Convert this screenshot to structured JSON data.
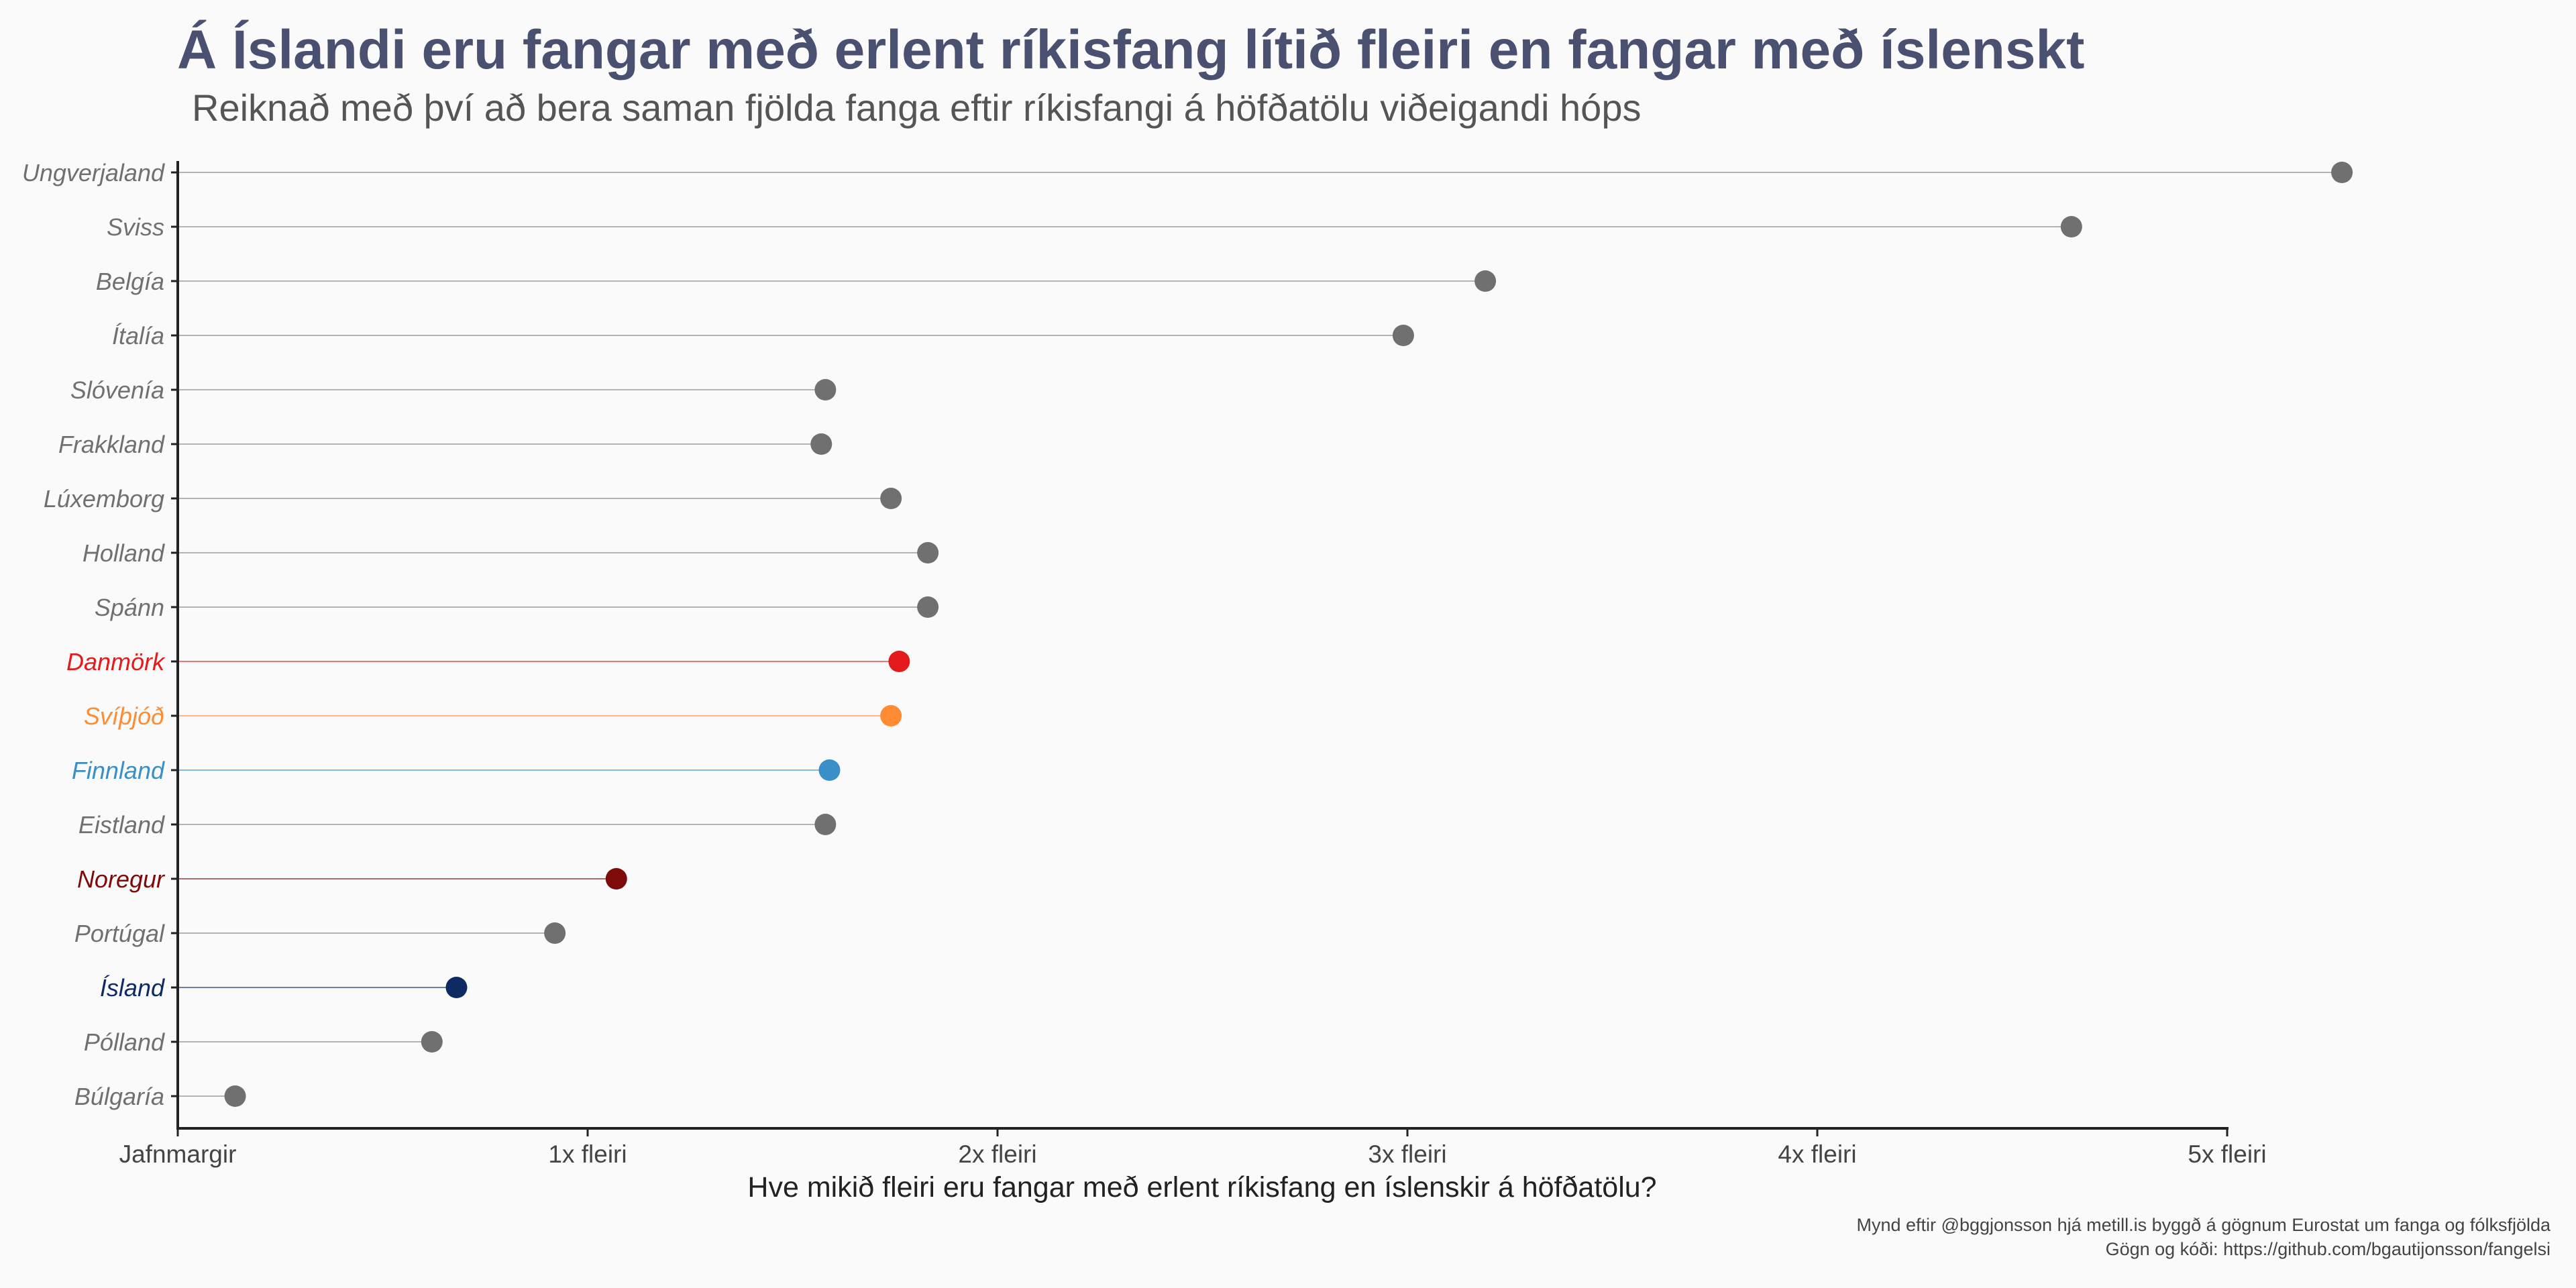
{
  "title": "Á Íslandi eru fangar með erlent ríkisfang lítið fleiri en fangar með íslenskt",
  "subtitle": "Reiknað með því að bera saman fjölda fanga eftir ríkisfangi á höfðatölu viðeigandi hóps",
  "caption_line1": "Mynd eftir @bggjonsson hjá metill.is byggð á gögnum Eurostat um fanga og fólksfjölda",
  "caption_line2": "Gögn og kóði: https://github.com/bgautijonsson/fangelsi",
  "colors": {
    "default": "#707070",
    "Danmörk": "#e41a1c",
    "Svíþjóð": "#ff8c33",
    "Finnland": "#3a8fc7",
    "Noregur": "#7f0a0a",
    "Ísland": "#0d2a63",
    "axis": "#222222",
    "background": "#fafafa"
  },
  "chart_data": {
    "type": "lollipop",
    "xlabel": "Hve mikið fleiri eru fangar með erlent ríkisfang en íslenskir á höfðatölu?",
    "ylabel": "",
    "xlim": [
      1,
      6
    ],
    "xticks": [
      {
        "value": 1,
        "label": "Jafnmargir"
      },
      {
        "value": 2,
        "label": "1x fleiri"
      },
      {
        "value": 3,
        "label": "2x fleiri"
      },
      {
        "value": 4,
        "label": "3x fleiri"
      },
      {
        "value": 5,
        "label": "4x fleiri"
      },
      {
        "value": 6,
        "label": "5x fleiri"
      }
    ],
    "categories": [
      "Ungverjaland",
      "Sviss",
      "Belgía",
      "Ítalía",
      "Slóvenía",
      "Frakkland",
      "Lúxemborg",
      "Holland",
      "Spánn",
      "Danmörk",
      "Svíþjóð",
      "Finnland",
      "Eistland",
      "Noregur",
      "Portúgal",
      "Ísland",
      "Pólland",
      "Búlgaría"
    ],
    "values": [
      6.28,
      5.62,
      4.19,
      3.99,
      2.58,
      2.57,
      2.74,
      2.83,
      2.83,
      2.76,
      2.74,
      2.59,
      2.58,
      2.07,
      1.92,
      1.68,
      1.62,
      1.14
    ],
    "grid": false
  }
}
